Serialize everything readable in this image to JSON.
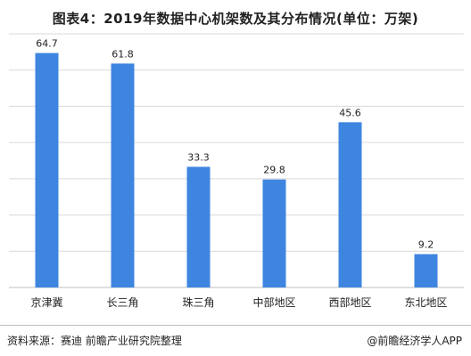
{
  "title": "图表4：2019年数据中心机架数及其分布情况(单位：万架)",
  "chart_data": {
    "type": "bar",
    "categories": [
      "京津冀",
      "长三角",
      "珠三角",
      "中部地区",
      "西部地区",
      "东北地区"
    ],
    "values": [
      64.7,
      61.8,
      33.3,
      29.8,
      45.6,
      9.2
    ],
    "ylim": [
      0,
      70
    ],
    "bar_color": "#3e85e0",
    "grid": true
  },
  "footer": {
    "source": "资料来源：赛迪 前瞻产业研究院整理",
    "credit": "@前瞻经济学人APP"
  }
}
